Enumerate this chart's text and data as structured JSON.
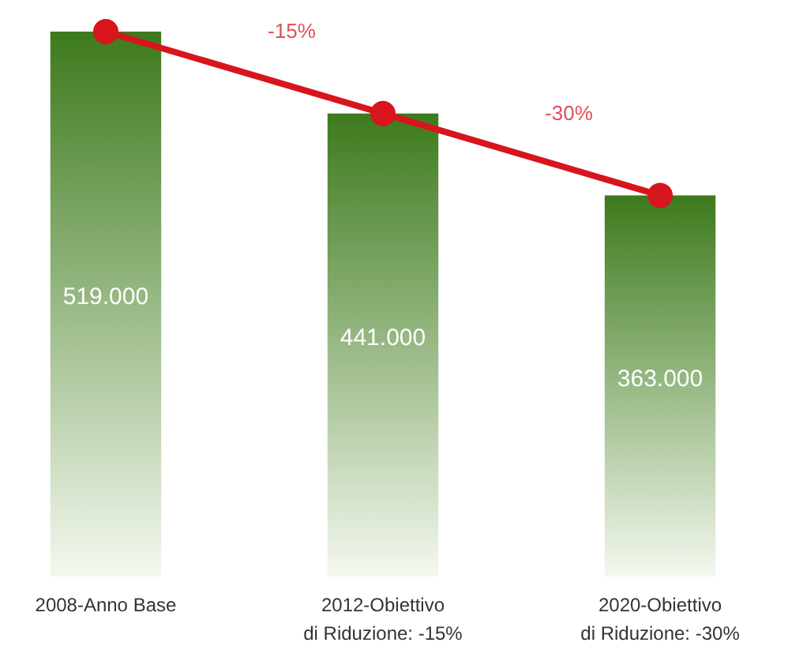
{
  "chart_data": {
    "type": "bar",
    "categories": [
      "2008-Anno Base",
      "2012-Obiettivo\ndi Riduzione: -15%",
      "2020-Obiettivo\ndi Riduzione: -30%"
    ],
    "series": [
      {
        "color": "#3d7a1c",
        "values": [
          519000,
          441000,
          363000
        ],
        "value_labels": [
          "519.000",
          "441.000",
          "363.000"
        ]
      },
      {
        "type": "line",
        "color": "#d8141c",
        "values": [
          519000,
          441000,
          363000
        ],
        "marker": "circle",
        "line_style": "solid"
      }
    ],
    "annotations": [
      "-15%",
      "-30%"
    ]
  }
}
